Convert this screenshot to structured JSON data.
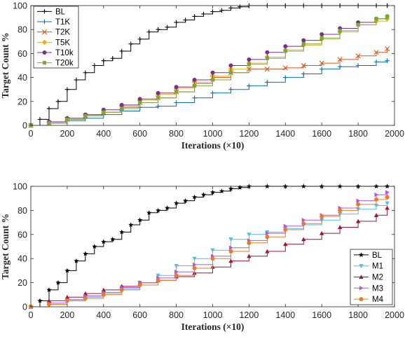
{
  "chart_data": [
    {
      "type": "line",
      "xlabel": "Iterations (×10)",
      "ylabel": "Target Count %",
      "xlim": [
        0,
        2000
      ],
      "ylim": [
        0,
        100
      ],
      "xticks": [
        0,
        200,
        400,
        600,
        800,
        1000,
        1200,
        1400,
        1600,
        1800,
        2000
      ],
      "yticks": [
        0,
        20,
        40,
        60,
        80,
        100
      ],
      "grid": false,
      "legend_position": "top-left",
      "series": [
        {
          "name": "BL",
          "color": "#000000",
          "marker": "plus",
          "x": [
            0,
            50,
            100,
            150,
            200,
            250,
            300,
            350,
            400,
            450,
            500,
            550,
            600,
            650,
            700,
            750,
            800,
            850,
            900,
            950,
            1000,
            1050,
            1100,
            1150,
            1200,
            1300,
            1400,
            1500,
            1600,
            1700,
            1800,
            1900,
            1960
          ],
          "y": [
            0,
            5,
            14,
            20,
            30,
            38,
            44,
            50,
            54,
            56,
            62,
            68,
            72,
            78,
            80,
            82,
            86,
            88,
            91,
            93,
            95,
            96,
            98,
            99,
            100,
            100,
            100,
            100,
            100,
            100,
            100,
            100,
            100
          ]
        },
        {
          "name": "T1K",
          "color": "#0072BD",
          "marker": "plus",
          "x": [
            0,
            100,
            200,
            300,
            400,
            500,
            600,
            700,
            800,
            900,
            1000,
            1100,
            1200,
            1300,
            1400,
            1500,
            1600,
            1700,
            1800,
            1900,
            1960
          ],
          "y": [
            0,
            2,
            4,
            6,
            9,
            12,
            15,
            16,
            19,
            23,
            27,
            30,
            33,
            36,
            40,
            43,
            47,
            49,
            50,
            53,
            54
          ]
        },
        {
          "name": "T2K",
          "color": "#D95319",
          "marker": "x",
          "x": [
            0,
            100,
            200,
            300,
            400,
            500,
            600,
            700,
            800,
            900,
            1000,
            1100,
            1200,
            1300,
            1400,
            1500,
            1600,
            1700,
            1800,
            1900,
            1960
          ],
          "y": [
            0,
            2,
            5,
            8,
            11,
            15,
            19,
            23,
            28,
            35,
            40,
            44,
            47,
            47,
            48,
            50,
            52,
            55,
            58,
            61,
            64
          ]
        },
        {
          "name": "T5K",
          "color": "#EDB120",
          "marker": "diamond",
          "x": [
            0,
            100,
            200,
            300,
            400,
            500,
            600,
            700,
            800,
            900,
            1000,
            1100,
            1200,
            1300,
            1400,
            1500,
            1600,
            1700,
            1800,
            1900,
            1960
          ],
          "y": [
            0,
            2,
            5,
            8,
            11,
            16,
            21,
            26,
            31,
            36,
            41,
            47,
            52,
            57,
            63,
            67,
            72,
            78,
            84,
            87,
            89
          ]
        },
        {
          "name": "T10k",
          "color": "#7E2F8E",
          "marker": "circle",
          "x": [
            0,
            100,
            200,
            300,
            400,
            500,
            600,
            700,
            800,
            900,
            1000,
            1100,
            1200,
            1300,
            1400,
            1500,
            1600,
            1700,
            1800,
            1900,
            1960
          ],
          "y": [
            0,
            3,
            6,
            9,
            13,
            17,
            22,
            27,
            32,
            38,
            44,
            50,
            55,
            61,
            66,
            71,
            76,
            81,
            86,
            89,
            91
          ]
        },
        {
          "name": "T20k",
          "color": "#77AC30",
          "marker": "square",
          "x": [
            0,
            100,
            200,
            300,
            400,
            500,
            600,
            700,
            800,
            900,
            1000,
            1100,
            1200,
            1300,
            1400,
            1500,
            1600,
            1700,
            1800,
            1900,
            1960
          ],
          "y": [
            0,
            2,
            5,
            8,
            11,
            14,
            19,
            23,
            28,
            33,
            38,
            44,
            51,
            56,
            62,
            68,
            73,
            79,
            84,
            89,
            91
          ]
        }
      ]
    },
    {
      "type": "line",
      "xlabel": "Iterations (×10)",
      "ylabel": "Target Count %",
      "xlim": [
        0,
        2000
      ],
      "ylim": [
        0,
        100
      ],
      "xticks": [
        0,
        200,
        400,
        600,
        800,
        1000,
        1200,
        1400,
        1600,
        1800,
        2000
      ],
      "yticks": [
        0,
        20,
        40,
        60,
        80,
        100
      ],
      "grid": false,
      "legend_position": "bottom-right",
      "series": [
        {
          "name": "BL",
          "color": "#000000",
          "marker": "star",
          "x": [
            0,
            50,
            100,
            150,
            200,
            250,
            300,
            350,
            400,
            450,
            500,
            550,
            600,
            650,
            700,
            750,
            800,
            850,
            900,
            950,
            1000,
            1050,
            1100,
            1150,
            1200,
            1300,
            1400,
            1500,
            1600,
            1700,
            1800,
            1900,
            1960
          ],
          "y": [
            0,
            5,
            14,
            20,
            30,
            38,
            44,
            50,
            54,
            56,
            62,
            68,
            72,
            78,
            80,
            82,
            86,
            88,
            91,
            93,
            95,
            96,
            98,
            99,
            100,
            100,
            100,
            100,
            100,
            100,
            100,
            100,
            100
          ]
        },
        {
          "name": "M1",
          "color": "#4DBEEE",
          "marker": "triangle-down",
          "x": [
            0,
            100,
            200,
            300,
            400,
            500,
            600,
            700,
            800,
            900,
            1000,
            1100,
            1200,
            1300,
            1400,
            1500,
            1600,
            1700,
            1800,
            1900,
            1960
          ],
          "y": [
            0,
            2,
            5,
            8,
            11,
            15,
            20,
            26,
            34,
            40,
            47,
            56,
            60,
            62,
            65,
            68,
            72,
            77,
            81,
            84,
            86
          ]
        },
        {
          "name": "M2",
          "color": "#A2142F",
          "marker": "triangle-up",
          "x": [
            0,
            100,
            200,
            300,
            400,
            500,
            600,
            700,
            800,
            900,
            1000,
            1100,
            1200,
            1300,
            1400,
            1500,
            1600,
            1700,
            1800,
            1900,
            1960
          ],
          "y": [
            0,
            5,
            8,
            11,
            14,
            17,
            20,
            22,
            25,
            28,
            33,
            38,
            42,
            46,
            52,
            56,
            61,
            66,
            71,
            76,
            82
          ]
        },
        {
          "name": "M3",
          "color": "#B554E6",
          "marker": "triangle-right",
          "x": [
            0,
            100,
            200,
            300,
            400,
            500,
            600,
            700,
            800,
            900,
            1000,
            1100,
            1200,
            1300,
            1400,
            1500,
            1600,
            1700,
            1800,
            1900,
            1960
          ],
          "y": [
            0,
            3,
            6,
            9,
            12,
            16,
            20,
            24,
            29,
            35,
            42,
            49,
            55,
            61,
            67,
            72,
            76,
            82,
            88,
            93,
            95
          ]
        },
        {
          "name": "M4",
          "color": "#F07A22",
          "marker": "circle",
          "x": [
            0,
            100,
            200,
            300,
            400,
            500,
            600,
            700,
            800,
            900,
            1000,
            1100,
            1200,
            1300,
            1400,
            1500,
            1600,
            1700,
            1800,
            1900,
            1960
          ],
          "y": [
            0,
            2,
            5,
            7,
            10,
            14,
            18,
            22,
            26,
            32,
            40,
            46,
            53,
            58,
            64,
            69,
            75,
            80,
            85,
            89,
            91
          ]
        }
      ]
    }
  ]
}
